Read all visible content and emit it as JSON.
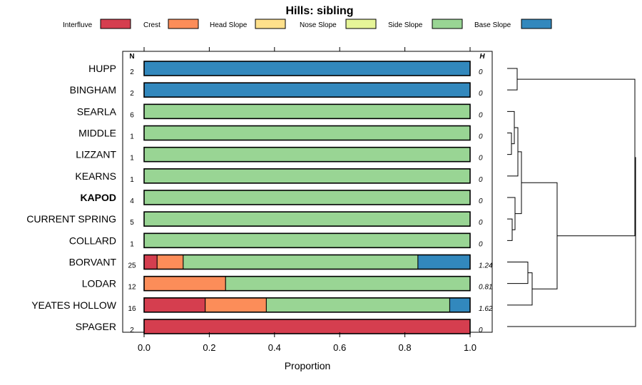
{
  "chart_data": {
    "type": "bar",
    "orientation": "horizontal-stacked-proportion",
    "title": "Hills: sibling",
    "xlabel": "Proportion",
    "xlim": [
      0,
      1
    ],
    "xticks": [
      "0.0",
      "0.2",
      "0.4",
      "0.6",
      "0.8",
      "1.0"
    ],
    "count_header": "N",
    "entropy_header": "H",
    "legend": [
      {
        "name": "Interfluve",
        "color": "#D53E4F"
      },
      {
        "name": "Crest",
        "color": "#FC8D59"
      },
      {
        "name": "Head Slope",
        "color": "#FEE08B"
      },
      {
        "name": "Nose Slope",
        "color": "#E6F598"
      },
      {
        "name": "Side Slope",
        "color": "#99D594"
      },
      {
        "name": "Base Slope",
        "color": "#3288BD"
      }
    ],
    "categories": [
      "HUPP",
      "BINGHAM",
      "SEARLA",
      "MIDDLE",
      "LIZZANT",
      "KEARNS",
      "KAPOD",
      "CURRENT SPRING",
      "COLLARD",
      "BORVANT",
      "LODAR",
      "YEATES HOLLOW",
      "SPAGER"
    ],
    "highlight": "KAPOD",
    "n": [
      "2",
      "2",
      "6",
      "1",
      "1",
      "1",
      "4",
      "5",
      "1",
      "25",
      "12",
      "16",
      "2"
    ],
    "h": [
      "0",
      "0",
      "0",
      "0",
      "0",
      "0",
      "0",
      "0",
      "0",
      "1.24",
      "0.81",
      "1.62",
      "0"
    ],
    "series": [
      {
        "name": "Interfluve",
        "values": [
          0,
          0,
          0,
          0,
          0,
          0,
          0,
          0,
          0,
          0.04,
          0,
          0.1875,
          1
        ]
      },
      {
        "name": "Crest",
        "values": [
          0,
          0,
          0,
          0,
          0,
          0,
          0,
          0,
          0,
          0.08,
          0.25,
          0.1875,
          0
        ]
      },
      {
        "name": "Head Slope",
        "values": [
          0,
          0,
          0,
          0,
          0,
          0,
          0,
          0,
          0,
          0,
          0,
          0,
          0
        ]
      },
      {
        "name": "Nose Slope",
        "values": [
          0,
          0,
          0,
          0,
          0,
          0,
          0,
          0,
          0,
          0,
          0,
          0,
          0
        ]
      },
      {
        "name": "Side Slope",
        "values": [
          0,
          0,
          1,
          1,
          1,
          1,
          1,
          1,
          1,
          0.72,
          0.75,
          0.5625,
          0
        ]
      },
      {
        "name": "Base Slope",
        "values": [
          1,
          1,
          0,
          0,
          0,
          0,
          0,
          0,
          0,
          0.16,
          0,
          0.0625,
          0
        ]
      }
    ],
    "dendrogram": "hierarchical clustering of categories shown at right"
  }
}
